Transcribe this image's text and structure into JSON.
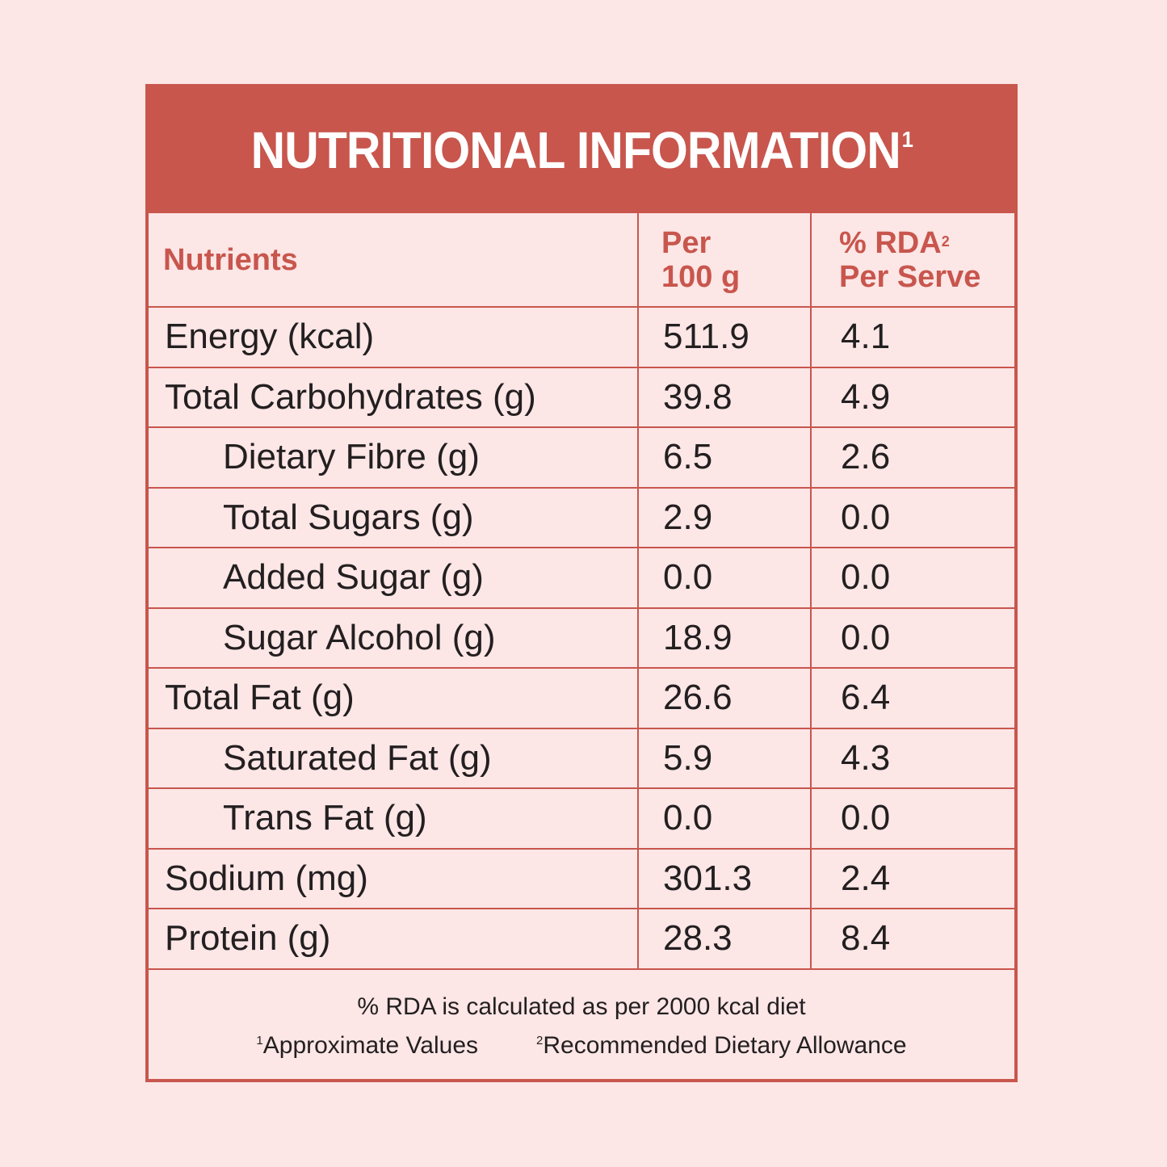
{
  "title": {
    "text": "NUTRITIONAL INFORMATION",
    "sup": "1"
  },
  "header": {
    "col1": "Nutrients",
    "col2_line1": "Per",
    "col2_line2": "100 g",
    "col3_line1": "% RDA",
    "col3_sup": "2",
    "col3_line2": "Per Serve"
  },
  "rows": [
    {
      "name": "Energy (kcal)",
      "per100": "511.9",
      "rda": "4.1"
    },
    {
      "name": "Total Carbohydrates (g)",
      "per100": "39.8",
      "rda": "4.9"
    },
    {
      "name": "Dietary Fibre (g)",
      "per100": "6.5",
      "rda": "2.6"
    },
    {
      "name": "Total Sugars (g)",
      "per100": "2.9",
      "rda": "0.0"
    },
    {
      "name": "Added Sugar (g)",
      "per100": "0.0",
      "rda": "0.0"
    },
    {
      "name": "Sugar Alcohol (g)",
      "per100": "18.9",
      "rda": "0.0"
    },
    {
      "name": "Total Fat (g)",
      "per100": "26.6",
      "rda": "6.4"
    },
    {
      "name": "Saturated Fat (g)",
      "per100": "5.9",
      "rda": "4.3"
    },
    {
      "name": "Trans Fat (g)",
      "per100": "0.0",
      "rda": "0.0"
    },
    {
      "name": "Sodium (mg)",
      "per100": "301.3",
      "rda": "2.4"
    },
    {
      "name": "Protein (g)",
      "per100": "28.3",
      "rda": "8.4"
    }
  ],
  "footer": {
    "note": "% RDA is calculated as per 2000 kcal diet",
    "footnote1_sup": "1",
    "footnote1": "Approximate Values",
    "footnote2_sup": "2",
    "footnote2": "Recommended Dietary Allowance"
  },
  "colors": {
    "accent": "#c8564d",
    "background": "#fce6e6",
    "text": "#231f20",
    "title_text": "#ffffff"
  }
}
